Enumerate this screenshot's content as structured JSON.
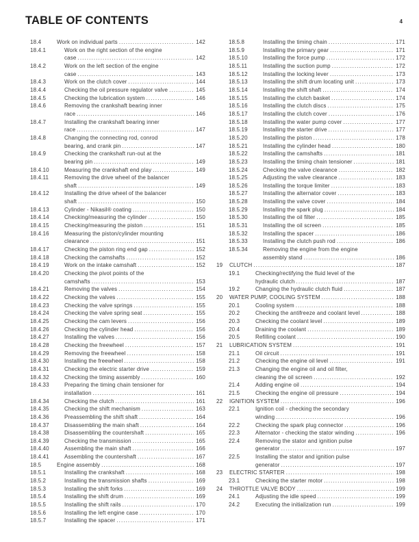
{
  "page": {
    "title": "TABLE OF CONTENTS",
    "number": "4"
  },
  "toc": {
    "left": [
      {
        "num": "18.4",
        "level": 2,
        "lines": [
          "Work on individual parts"
        ],
        "page": "142"
      },
      {
        "num": "18.4.1",
        "level": 3,
        "lines": [
          "Work on the right section of the engine",
          "case"
        ],
        "page": "142"
      },
      {
        "num": "18.4.2",
        "level": 3,
        "lines": [
          "Work on the left section of the engine",
          "case"
        ],
        "page": "143"
      },
      {
        "num": "18.4.3",
        "level": 3,
        "lines": [
          "Work on the clutch cover"
        ],
        "page": "144"
      },
      {
        "num": "18.4.4",
        "level": 3,
        "lines": [
          "Checking the oil pressure regulator valve"
        ],
        "page": "145"
      },
      {
        "num": "18.4.5",
        "level": 3,
        "lines": [
          "Checking the lubrication system"
        ],
        "page": "146"
      },
      {
        "num": "18.4.6",
        "level": 3,
        "lines": [
          "Removing the crankshaft bearing inner",
          "race"
        ],
        "page": "146"
      },
      {
        "num": "18.4.7",
        "level": 3,
        "lines": [
          "Installing the crankshaft bearing inner",
          "race"
        ],
        "page": "147"
      },
      {
        "num": "18.4.8",
        "level": 3,
        "lines": [
          "Changing the connecting rod, conrod",
          "bearing, and crank pin"
        ],
        "page": "147"
      },
      {
        "num": "18.4.9",
        "level": 3,
        "lines": [
          "Checking the crankshaft run-out at the",
          "bearing pin"
        ],
        "page": "149"
      },
      {
        "num": "18.4.10",
        "level": 3,
        "lines": [
          "Measuring the crankshaft end play"
        ],
        "page": "149"
      },
      {
        "num": "18.4.11",
        "level": 3,
        "lines": [
          "Removing the drive wheel of the balancer",
          "shaft"
        ],
        "page": "149"
      },
      {
        "num": "18.4.12",
        "level": 3,
        "lines": [
          "Installing the drive wheel of the balancer",
          "shaft"
        ],
        "page": "150"
      },
      {
        "num": "18.4.13",
        "level": 3,
        "lines": [
          "Cylinder - Nikasil® coating"
        ],
        "page": "150"
      },
      {
        "num": "18.4.14",
        "level": 3,
        "lines": [
          "Checking/measuring the cylinder"
        ],
        "page": "150"
      },
      {
        "num": "18.4.15",
        "level": 3,
        "lines": [
          "Checking/measuring the piston"
        ],
        "page": "151"
      },
      {
        "num": "18.4.16",
        "level": 3,
        "lines": [
          "Measuring the piston/cylinder mounting",
          "clearance"
        ],
        "page": "151"
      },
      {
        "num": "18.4.17",
        "level": 3,
        "lines": [
          "Checking the piston ring end gap"
        ],
        "page": "152"
      },
      {
        "num": "18.4.18",
        "level": 3,
        "lines": [
          "Checking the camshafts"
        ],
        "page": "152"
      },
      {
        "num": "18.4.19",
        "level": 3,
        "lines": [
          "Work on the intake camshaft"
        ],
        "page": "152"
      },
      {
        "num": "18.4.20",
        "level": 3,
        "lines": [
          "Checking the pivot points of the",
          "camshafts"
        ],
        "page": "153"
      },
      {
        "num": "18.4.21",
        "level": 3,
        "lines": [
          "Removing the valves"
        ],
        "page": "154"
      },
      {
        "num": "18.4.22",
        "level": 3,
        "lines": [
          "Checking the valves"
        ],
        "page": "155"
      },
      {
        "num": "18.4.23",
        "level": 3,
        "lines": [
          "Checking the valve springs"
        ],
        "page": "155"
      },
      {
        "num": "18.4.24",
        "level": 3,
        "lines": [
          "Checking the valve spring seat"
        ],
        "page": "155"
      },
      {
        "num": "18.4.25",
        "level": 3,
        "lines": [
          "Checking the cam levers"
        ],
        "page": "156"
      },
      {
        "num": "18.4.26",
        "level": 3,
        "lines": [
          "Checking the cylinder head"
        ],
        "page": "156"
      },
      {
        "num": "18.4.27",
        "level": 3,
        "lines": [
          "Installing the valves"
        ],
        "page": "156"
      },
      {
        "num": "18.4.28",
        "level": 3,
        "lines": [
          "Checking the freewheel"
        ],
        "page": "157"
      },
      {
        "num": "18.4.29",
        "level": 3,
        "lines": [
          "Removing the freewheel"
        ],
        "page": "158"
      },
      {
        "num": "18.4.30",
        "level": 3,
        "lines": [
          "Installing the freewheel"
        ],
        "page": "158"
      },
      {
        "num": "18.4.31",
        "level": 3,
        "lines": [
          "Checking the electric starter drive"
        ],
        "page": "159"
      },
      {
        "num": "18.4.32",
        "level": 3,
        "lines": [
          "Checking the timing assembly"
        ],
        "page": "160"
      },
      {
        "num": "18.4.33",
        "level": 3,
        "lines": [
          "Preparing the timing chain tensioner for",
          "installation"
        ],
        "page": "161"
      },
      {
        "num": "18.4.34",
        "level": 3,
        "lines": [
          "Checking the clutch"
        ],
        "page": "161"
      },
      {
        "num": "18.4.35",
        "level": 3,
        "lines": [
          "Checking the shift mechanism"
        ],
        "page": "163"
      },
      {
        "num": "18.4.36",
        "level": 3,
        "lines": [
          "Preassembling the shift shaft"
        ],
        "page": "164"
      },
      {
        "num": "18.4.37",
        "level": 3,
        "lines": [
          "Disassembling the main shaft"
        ],
        "page": "164"
      },
      {
        "num": "18.4.38",
        "level": 3,
        "lines": [
          "Disassembling the countershaft"
        ],
        "page": "165"
      },
      {
        "num": "18.4.39",
        "level": 3,
        "lines": [
          "Checking the transmission"
        ],
        "page": "165"
      },
      {
        "num": "18.4.40",
        "level": 3,
        "lines": [
          "Assembling the main shaft"
        ],
        "page": "166"
      },
      {
        "num": "18.4.41",
        "level": 3,
        "lines": [
          "Assembling the countershaft"
        ],
        "page": "167"
      },
      {
        "num": "18.5",
        "level": 2,
        "lines": [
          "Engine assembly"
        ],
        "page": "168"
      },
      {
        "num": "18.5.1",
        "level": 3,
        "lines": [
          "Installing the crankshaft"
        ],
        "page": "168"
      },
      {
        "num": "18.5.2",
        "level": 3,
        "lines": [
          "Installing the transmission shafts"
        ],
        "page": "169"
      },
      {
        "num": "18.5.3",
        "level": 3,
        "lines": [
          "Installing the shift forks"
        ],
        "page": "169"
      },
      {
        "num": "18.5.4",
        "level": 3,
        "lines": [
          "Installing the shift drum"
        ],
        "page": "169"
      },
      {
        "num": "18.5.5",
        "level": 3,
        "lines": [
          "Installing the shift rails"
        ],
        "page": "170"
      },
      {
        "num": "18.5.6",
        "level": 3,
        "lines": [
          "Installing the left engine case"
        ],
        "page": "170"
      },
      {
        "num": "18.5.7",
        "level": 3,
        "lines": [
          "Installing the spacer"
        ],
        "page": "171"
      }
    ],
    "right": [
      {
        "num": "18.5.8",
        "level": 3,
        "lines": [
          "Installing the timing chain"
        ],
        "page": "171"
      },
      {
        "num": "18.5.9",
        "level": 3,
        "lines": [
          "Installing the primary gear"
        ],
        "page": "171"
      },
      {
        "num": "18.5.10",
        "level": 3,
        "lines": [
          "Installing the force pump"
        ],
        "page": "172"
      },
      {
        "num": "18.5.11",
        "level": 3,
        "lines": [
          "Installing the suction pump"
        ],
        "page": "172"
      },
      {
        "num": "18.5.12",
        "level": 3,
        "lines": [
          "Installing the locking lever"
        ],
        "page": "173"
      },
      {
        "num": "18.5.13",
        "level": 3,
        "lines": [
          "Installing the shift drum locating unit"
        ],
        "page": "173"
      },
      {
        "num": "18.5.14",
        "level": 3,
        "lines": [
          "Installing the shift shaft"
        ],
        "page": "174"
      },
      {
        "num": "18.5.15",
        "level": 3,
        "lines": [
          "Installing the clutch basket"
        ],
        "page": "174"
      },
      {
        "num": "18.5.16",
        "level": 3,
        "lines": [
          "Installing the clutch discs"
        ],
        "page": "175"
      },
      {
        "num": "18.5.17",
        "level": 3,
        "lines": [
          "Installing the clutch cover"
        ],
        "page": "176"
      },
      {
        "num": "18.5.18",
        "level": 3,
        "lines": [
          "Installing the water pump cover"
        ],
        "page": "177"
      },
      {
        "num": "18.5.19",
        "level": 3,
        "lines": [
          "Installing the starter drive"
        ],
        "page": "177"
      },
      {
        "num": "18.5.20",
        "level": 3,
        "lines": [
          "Installing the piston"
        ],
        "page": "178"
      },
      {
        "num": "18.5.21",
        "level": 3,
        "lines": [
          "Installing the cylinder head"
        ],
        "page": "180"
      },
      {
        "num": "18.5.22",
        "level": 3,
        "lines": [
          "Installing the camshafts"
        ],
        "page": "181"
      },
      {
        "num": "18.5.23",
        "level": 3,
        "lines": [
          "Installing the timing chain tensioner"
        ],
        "page": "181"
      },
      {
        "num": "18.5.24",
        "level": 3,
        "lines": [
          "Checking the valve clearance"
        ],
        "page": "182"
      },
      {
        "num": "18.5.25",
        "level": 3,
        "lines": [
          "Adjusting the valve clearance"
        ],
        "page": "183"
      },
      {
        "num": "18.5.26",
        "level": 3,
        "lines": [
          "Installing the torque limiter"
        ],
        "page": "183"
      },
      {
        "num": "18.5.27",
        "level": 3,
        "lines": [
          "Installing the alternator cover"
        ],
        "page": "183"
      },
      {
        "num": "18.5.28",
        "level": 3,
        "lines": [
          "Installing the valve cover"
        ],
        "page": "184"
      },
      {
        "num": "18.5.29",
        "level": 3,
        "lines": [
          "Installing the spark plug"
        ],
        "page": "184"
      },
      {
        "num": "18.5.30",
        "level": 3,
        "lines": [
          "Installing the oil filter"
        ],
        "page": "185"
      },
      {
        "num": "18.5.31",
        "level": 3,
        "lines": [
          "Installing the oil screen"
        ],
        "page": "185"
      },
      {
        "num": "18.5.32",
        "level": 3,
        "lines": [
          "Installing the spacer"
        ],
        "page": "186"
      },
      {
        "num": "18.5.33",
        "level": 3,
        "lines": [
          "Installing the clutch push rod"
        ],
        "page": "186"
      },
      {
        "num": "18.5.34",
        "level": 3,
        "lines": [
          "Removing the engine from the engine",
          "assembly stand"
        ],
        "page": "186"
      },
      {
        "num": "19",
        "level": 1,
        "lines": [
          "CLUTCH"
        ],
        "page": "187"
      },
      {
        "num": "19.1",
        "level": 2,
        "lines": [
          "Checking/rectifying the fluid level of the",
          "hydraulic clutch"
        ],
        "page": "187"
      },
      {
        "num": "19.2",
        "level": 2,
        "lines": [
          "Changing the hydraulic clutch fluid"
        ],
        "page": "187"
      },
      {
        "num": "20",
        "level": 1,
        "lines": [
          "WATER PUMP, COOLING SYSTEM"
        ],
        "page": "188"
      },
      {
        "num": "20.1",
        "level": 2,
        "lines": [
          "Cooling system"
        ],
        "page": "188"
      },
      {
        "num": "20.2",
        "level": 2,
        "lines": [
          "Checking the antifreeze and coolant level"
        ],
        "page": "188"
      },
      {
        "num": "20.3",
        "level": 2,
        "lines": [
          "Checking the coolant level"
        ],
        "page": "189"
      },
      {
        "num": "20.4",
        "level": 2,
        "lines": [
          "Draining the coolant"
        ],
        "page": "189"
      },
      {
        "num": "20.5",
        "level": 2,
        "lines": [
          "Refilling coolant"
        ],
        "page": "190"
      },
      {
        "num": "21",
        "level": 1,
        "lines": [
          "LUBRICATION SYSTEM"
        ],
        "page": "191"
      },
      {
        "num": "21.1",
        "level": 2,
        "lines": [
          "Oil circuit"
        ],
        "page": "191"
      },
      {
        "num": "21.2",
        "level": 2,
        "lines": [
          "Checking the engine oil level"
        ],
        "page": "191"
      },
      {
        "num": "21.3",
        "level": 2,
        "lines": [
          "Changing the engine oil and oil filter,",
          "cleaning the oil screen"
        ],
        "page": "192"
      },
      {
        "num": "21.4",
        "level": 2,
        "lines": [
          "Adding engine oil"
        ],
        "page": "194"
      },
      {
        "num": "21.5",
        "level": 2,
        "lines": [
          "Checking the engine oil pressure"
        ],
        "page": "194"
      },
      {
        "num": "22",
        "level": 1,
        "lines": [
          "IGNITION SYSTEM"
        ],
        "page": "196"
      },
      {
        "num": "22.1",
        "level": 2,
        "lines": [
          "Ignition coil - checking the secondary",
          "winding"
        ],
        "page": "196"
      },
      {
        "num": "22.2",
        "level": 2,
        "lines": [
          "Checking the spark plug connector"
        ],
        "page": "196"
      },
      {
        "num": "22.3",
        "level": 2,
        "lines": [
          "Alternator - checking the stator winding"
        ],
        "page": "196"
      },
      {
        "num": "22.4",
        "level": 2,
        "lines": [
          "Removing the stator and ignition pulse",
          "generator"
        ],
        "page": "197"
      },
      {
        "num": "22.5",
        "level": 2,
        "lines": [
          "Installing the stator and ignition pulse",
          "generator"
        ],
        "page": "197"
      },
      {
        "num": "23",
        "level": 1,
        "lines": [
          "ELECTRIC STARTER"
        ],
        "page": "198"
      },
      {
        "num": "23.1",
        "level": 2,
        "lines": [
          "Checking the starter motor"
        ],
        "page": "198"
      },
      {
        "num": "24",
        "level": 1,
        "lines": [
          "THROTTLE VALVE BODY"
        ],
        "page": "199"
      },
      {
        "num": "24.1",
        "level": 2,
        "lines": [
          "Adjusting the idle speed"
        ],
        "page": "199"
      },
      {
        "num": "24.2",
        "level": 2,
        "lines": [
          "Executing the initialization run"
        ],
        "page": "199"
      }
    ]
  }
}
